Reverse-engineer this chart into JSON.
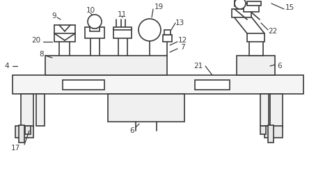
{
  "bg_color": "#ffffff",
  "line_color": "#3a3a3a",
  "lw": 1.2,
  "figsize": [
    4.54,
    2.43
  ],
  "dpi": 100
}
